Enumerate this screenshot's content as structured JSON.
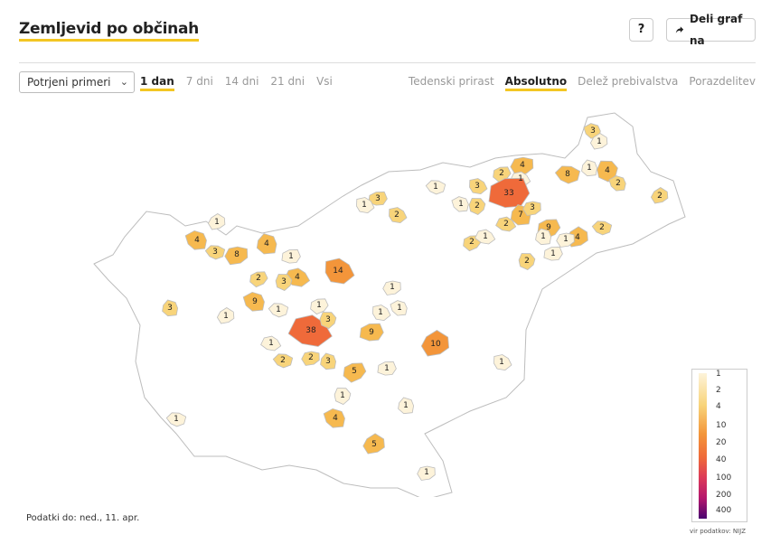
{
  "header": {
    "title": "Zemljevid po občinah",
    "help_label": "?",
    "share_label": "Deli graf na"
  },
  "controls": {
    "select_value": "Potrjeni primeri",
    "time_tabs": [
      {
        "label": "1 dan",
        "active": true
      },
      {
        "label": "7 dni",
        "active": false
      },
      {
        "label": "14 dni",
        "active": false
      },
      {
        "label": "21 dni",
        "active": false
      },
      {
        "label": "Vsi",
        "active": false
      }
    ],
    "mode_tabs": [
      {
        "label": "Tedenski prirast",
        "active": false
      },
      {
        "label": "Absolutno",
        "active": true
      },
      {
        "label": "Delež prebivalstva",
        "active": false
      },
      {
        "label": "Porazdelitev",
        "active": false
      }
    ]
  },
  "map": {
    "municipality_values": [
      "3",
      "1",
      "8",
      "1",
      "4",
      "2",
      "1",
      "4",
      "33",
      "3",
      "2",
      "2",
      "1",
      "7",
      "3",
      "9",
      "2",
      "2",
      "3",
      "1",
      "1",
      "4",
      "2",
      "1",
      "1",
      "2",
      "1",
      "2",
      "1",
      "2",
      "4",
      "1",
      "3",
      "4",
      "8",
      "2",
      "4",
      "3",
      "1",
      "14",
      "9",
      "1",
      "1",
      "3",
      "1",
      "1",
      "38",
      "3",
      "9",
      "1",
      "1",
      "10",
      "2",
      "3",
      "2",
      "5",
      "1",
      "1",
      "1",
      "1",
      "4",
      "5",
      "1",
      "1",
      "1"
    ],
    "color_scale": [
      "#fdf3da",
      "#fbe8b4",
      "#f8d47a",
      "#f6b94f",
      "#f3953a",
      "#ef6a3a",
      "#dc3a59",
      "#b4176d",
      "#7e0b78",
      "#4a0470"
    ]
  },
  "legend": {
    "ticks": [
      "1",
      "2",
      "4",
      "10",
      "20",
      "40",
      "100",
      "200",
      "400"
    ],
    "source": "vir podatkov: NIJZ"
  },
  "footer": {
    "data_date": "Podatki do: ned., 11. apr."
  }
}
